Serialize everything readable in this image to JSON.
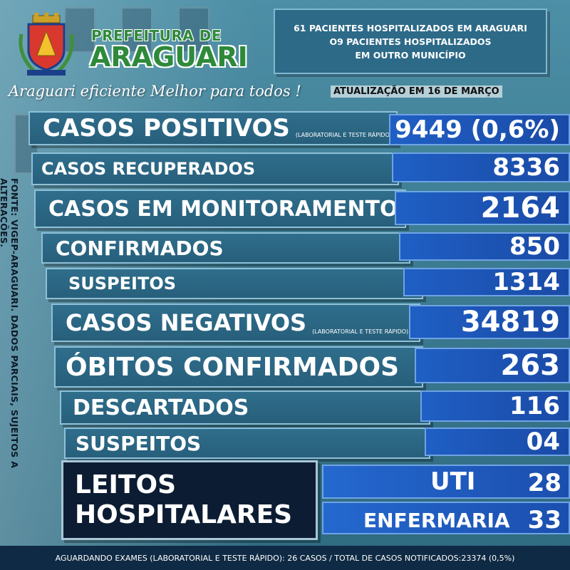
{
  "header": {
    "brand_top": "PREFEITURA DE",
    "brand_main": "ARAGUARI",
    "info_lines": [
      "61  PACIENTES HOSPITALIZADOS EM ARAGUARI",
      "O9 PACIENTES HOSPITALIZADOS",
      "EM OUTRO MUNICÍPIO"
    ],
    "tagline": "Araguari  eficiente Melhor para todos !",
    "update": "ATUALIZAÇÃO EM 16 DE MARÇO"
  },
  "rows": [
    {
      "label": "CASOS POSITIVOS",
      "note": "(LABORATORIAL E TESTE RÁPIDO)",
      "value": "9449 (0,6%)"
    },
    {
      "label": "CASOS RECUPERADOS",
      "note": "",
      "value": "8336"
    },
    {
      "label": "CASOS EM MONITORAMENTO",
      "note": "",
      "value": "2164"
    },
    {
      "label": "CONFIRMADOS",
      "note": "",
      "value": "850"
    },
    {
      "label": "SUSPEITOS",
      "note": "",
      "value": "1314"
    },
    {
      "label": "CASOS NEGATIVOS",
      "note": "(LABORATORIAL E TESTE RÁPIDO)",
      "value": "34819"
    },
    {
      "label": "ÓBITOS CONFIRMADOS",
      "note": "",
      "value": "263"
    },
    {
      "label": "DESCARTADOS",
      "note": "",
      "value": "116"
    },
    {
      "label": "SUSPEITOS",
      "note": "",
      "value": "04"
    }
  ],
  "beds": {
    "title_line1": "LEITOS",
    "title_line2": "HOSPITALARES",
    "uti_label": "UTI",
    "uti_value": "28",
    "ward_label": "ENFERMARIA",
    "ward_value": "33"
  },
  "side_note": "FONTE: VIGEP-ARAGUARI. DADOS PARCIAIS, SUJEITOS A ALTERAÇÕES.",
  "footer": "AGUARDANDO EXAMES (LABORATORIAL E TESTE RÁPIDO): 26 CASOS   /   TOTAL DE CASOS NOTIFICADOS:23374  (0,5%)",
  "colors": {
    "brand_green": "#2e8a3a",
    "label_bg": "#2f6e8c",
    "value_bg": "#1f5fc4",
    "dark_box": "#0c1c33"
  }
}
